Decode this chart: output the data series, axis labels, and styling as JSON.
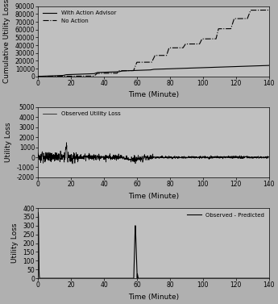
{
  "fig_width": 3.45,
  "fig_height": 3.77,
  "dpi": 100,
  "bg_color": "#b0b0b0",
  "plot_bg_color": "#c0c0c0",
  "line_color": "#000000",
  "xmax": 140,
  "xlabel": "Time (Minute)",
  "plot1": {
    "ylabel": "Cumulative Utility Loss",
    "ylim": [
      0,
      90000
    ],
    "yticks": [
      0,
      10000,
      20000,
      30000,
      40000,
      50000,
      60000,
      70000,
      80000,
      90000
    ],
    "yticklabels": [
      "0",
      "10000",
      "20000",
      "30000",
      "40000",
      "50000",
      "60000",
      "70000",
      "80000",
      "90000"
    ],
    "legend1": "With Action Advisor",
    "legend2": "No Action"
  },
  "plot2": {
    "ylabel": "Utility Loss",
    "ylim": [
      -2000,
      5000
    ],
    "yticks": [
      -2000,
      -1000,
      0,
      1000,
      2000,
      3000,
      4000,
      5000
    ],
    "yticklabels": [
      "-2000",
      "-1000",
      "0",
      "1000",
      "2000",
      "3000",
      "4000",
      "5000"
    ],
    "legend": "Observed Utility Loss"
  },
  "plot3": {
    "ylabel": "Utility Loss",
    "ylim": [
      0,
      400
    ],
    "yticks": [
      0,
      50,
      100,
      150,
      200,
      250,
      300,
      350,
      400
    ],
    "yticklabels": [
      "0",
      "50",
      "100",
      "150",
      "200",
      "250",
      "300",
      "350",
      "400"
    ],
    "legend": "Observed - Predicted"
  },
  "xticks": [
    0,
    20,
    40,
    60,
    80,
    100,
    120,
    140
  ],
  "xticklabels": [
    "0",
    "20",
    "40",
    "60",
    "80",
    "100",
    "120",
    "140"
  ]
}
